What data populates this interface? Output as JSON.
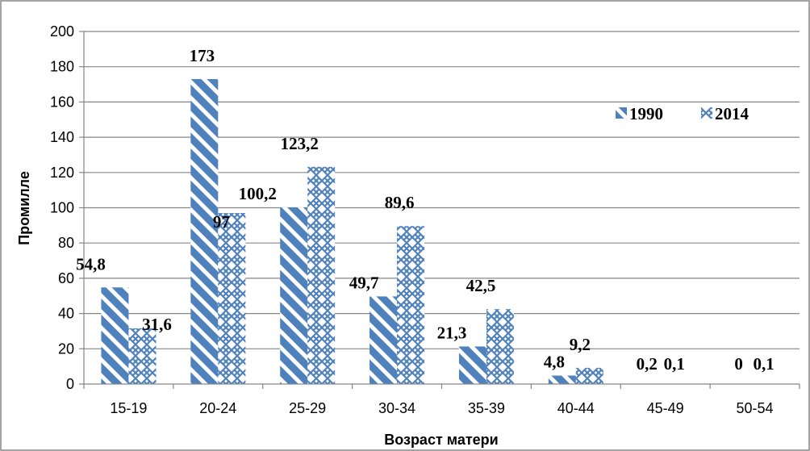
{
  "chart_data": {
    "type": "bar",
    "title": "",
    "xlabel": "Возраст матери",
    "ylabel": "Промилле",
    "ylim": [
      0,
      200
    ],
    "yticks": [
      "0",
      "20",
      "40",
      "60",
      "80",
      "100",
      "120",
      "140",
      "160",
      "180",
      "200"
    ],
    "grid": true,
    "legend_position": "top-right",
    "categories": [
      "15-19",
      "20-24",
      "25-29",
      "30-34",
      "35-39",
      "40-44",
      "45-49",
      "50-54"
    ],
    "series": [
      {
        "name": "1990",
        "values": [
          54.8,
          173,
          100.2,
          49.7,
          21.3,
          4.8,
          0.2,
          0
        ],
        "labels": [
          "54,8",
          "173",
          "100,2",
          "49,7",
          "21,3",
          "4,8",
          "0,2",
          "0"
        ],
        "color": "#4f81bd",
        "pattern": "diagonal-stripes"
      },
      {
        "name": "2014",
        "values": [
          31.6,
          97,
          123.2,
          89.6,
          42.5,
          9.2,
          0.1,
          0.1
        ],
        "labels": [
          "31,6",
          "97",
          "123,2",
          "89,6",
          "42,5",
          "9,2",
          "0,1",
          "0,1"
        ],
        "color": "#4f81bd",
        "pattern": "crosshatch"
      }
    ]
  }
}
